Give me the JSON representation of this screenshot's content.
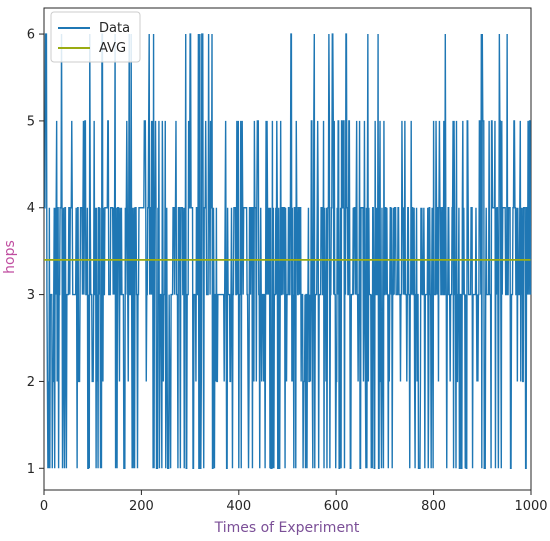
{
  "chart_data": {
    "type": "line",
    "title": "",
    "xlabel": "Times of Experiment",
    "ylabel": "hops",
    "xlim": [
      0,
      1000
    ],
    "ylim": [
      0.75,
      6.3
    ],
    "x_ticks": [
      0,
      200,
      400,
      600,
      800,
      1000
    ],
    "y_ticks": [
      1,
      2,
      3,
      4,
      5,
      6
    ],
    "grid": false,
    "legend_position": "top-left",
    "series": [
      {
        "name": "Data",
        "color": "#1f77b4",
        "n_points": 1000,
        "value_set": [
          1,
          2,
          3,
          4,
          5,
          6
        ],
        "note": "per-experiment hop counts oscillating mostly between 3 and 4, frequent drops to 1-2 and spikes to 5-6"
      },
      {
        "name": "AVG",
        "color": "#9aab12",
        "constant_value": 3.4
      }
    ]
  }
}
